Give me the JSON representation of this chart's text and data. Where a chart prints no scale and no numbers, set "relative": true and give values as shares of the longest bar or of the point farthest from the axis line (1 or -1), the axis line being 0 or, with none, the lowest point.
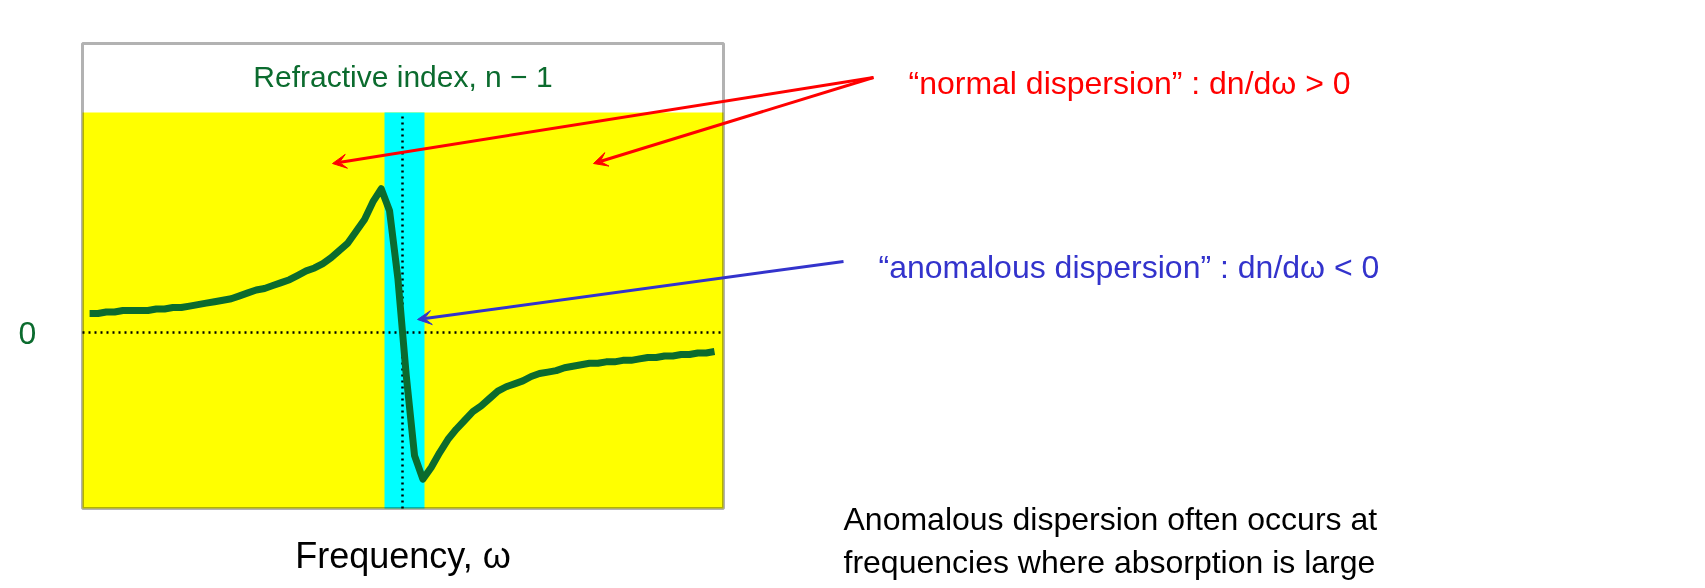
{
  "chart_data": {
    "type": "line",
    "relative": true,
    "title": "Refractive index, n − 1",
    "xlabel": "Frequency, ω",
    "categories": [
      null,
      null,
      null,
      null,
      null,
      null,
      null,
      null,
      null,
      null,
      null,
      null,
      null,
      null,
      null,
      null,
      null,
      null,
      null,
      null,
      null,
      null,
      null,
      null,
      null,
      null,
      null,
      null,
      null,
      null,
      null,
      null,
      null,
      null,
      null,
      null,
      null,
      null,
      null,
      null,
      null,
      null,
      null,
      null,
      null,
      null,
      null,
      null,
      null,
      null,
      null,
      null,
      null,
      null,
      null,
      null,
      null,
      null,
      null,
      null,
      null,
      null,
      null,
      null,
      null,
      null,
      null,
      null,
      null,
      null,
      null,
      null,
      null,
      null,
      null,
      null
    ],
    "series": [
      {
        "color": "#0b6b2e",
        "values": [
          0.13,
          0.13,
          0.14,
          0.14,
          0.15,
          0.15,
          0.15,
          0.15,
          0.16,
          0.16,
          0.17,
          0.17,
          0.18,
          0.19,
          0.2,
          0.21,
          0.22,
          0.23,
          0.25,
          0.27,
          0.29,
          0.3,
          0.32,
          0.34,
          0.36,
          0.39,
          0.42,
          0.44,
          0.47,
          0.51,
          0.56,
          0.61,
          0.69,
          0.77,
          0.89,
          0.98,
          0.83,
          0.37,
          -0.29,
          -0.84,
          -1,
          -0.92,
          -0.82,
          -0.73,
          -0.66,
          -0.6,
          -0.54,
          -0.5,
          -0.45,
          -0.4,
          -0.37,
          -0.35,
          -0.33,
          -0.3,
          -0.28,
          -0.27,
          -0.26,
          -0.24,
          -0.23,
          -0.22,
          -0.21,
          -0.21,
          -0.2,
          -0.2,
          -0.19,
          -0.19,
          -0.18,
          -0.17,
          -0.17,
          -0.16,
          -0.16,
          -0.15,
          -0.15,
          -0.14,
          -0.14,
          -0.13
        ]
      }
    ],
    "marker": "none",
    "line_style": "solid",
    "ref_lines": [
      {
        "axis": "y",
        "value": 0,
        "label": "0",
        "color": "#000000",
        "line_style": "dotted"
      }
    ],
    "annotations": [
      "“normal dispersion” : dn/dω > 0",
      "“anomalous dispersion” : dn/dω < 0",
      "Anomalous dispersion often occurs at frequencies where absorption is large"
    ]
  }
}
